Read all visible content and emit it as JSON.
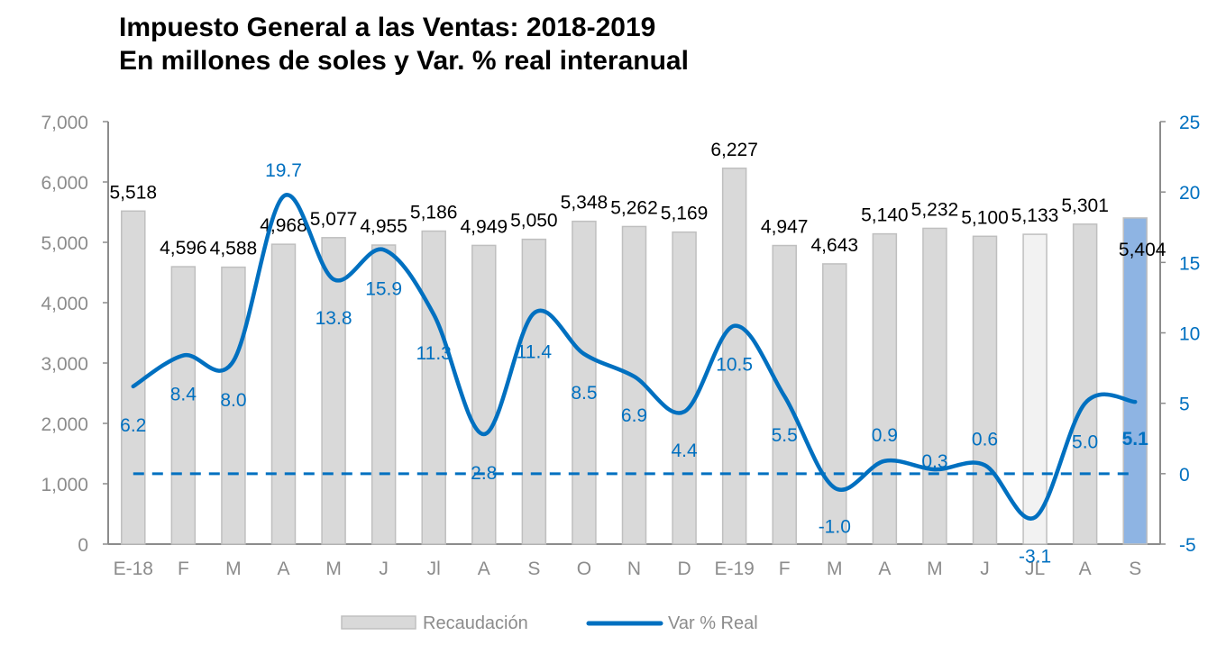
{
  "chart_data": {
    "type": "bar+line",
    "title": "Impuesto General a las Ventas: 2018-2019",
    "subtitle": "En millones de soles y Var. % real interanual",
    "categories": [
      "E-18",
      "F",
      "M",
      "A",
      "M",
      "J",
      "Jl",
      "A",
      "S",
      "O",
      "N",
      "D",
      "E-19",
      "F",
      "M",
      "A",
      "M",
      "J",
      "JL",
      "A",
      "S"
    ],
    "series": [
      {
        "name": "Recaudación",
        "type": "bar",
        "axis": "left",
        "color": "#d9d9d9",
        "values": [
          5518,
          4596,
          4588,
          4968,
          5077,
          4955,
          5186,
          4949,
          5050,
          5348,
          5262,
          5169,
          6227,
          4947,
          4643,
          5140,
          5232,
          5100,
          5133,
          5301,
          5404
        ],
        "labels": [
          "5,518",
          "4,596",
          "4,588",
          "4,968",
          "5,077",
          "4,955",
          "5,186",
          "4,949",
          "5,050",
          "5,348",
          "5,262",
          "5,169",
          "6,227",
          "4,947",
          "4,643",
          "5,140",
          "5,232",
          "5,100",
          "5,133",
          "5,301",
          "5,404"
        ]
      },
      {
        "name": "Var % Real",
        "type": "line",
        "axis": "right",
        "color": "#0070c0",
        "smooth": true,
        "values": [
          6.2,
          8.4,
          8.0,
          19.7,
          13.8,
          15.9,
          11.3,
          2.8,
          11.4,
          8.5,
          6.9,
          4.4,
          10.5,
          5.5,
          -1.0,
          0.9,
          0.3,
          0.6,
          -3.1,
          5.0,
          5.1
        ],
        "labels": [
          "6.2",
          "8.4",
          "8.0",
          "19.7",
          "13.8",
          "15.9",
          "11.3",
          "2.8",
          "11.4",
          "8.5",
          "6.9",
          "4.4",
          "10.5",
          "5.5",
          "-1.0",
          "0.9",
          "0.3",
          "0.6",
          "-3.1",
          "5.0",
          "5.1"
        ]
      }
    ],
    "bar_highlights": {
      "JL": "#f2f2f2",
      "S": "#8eb4e3"
    },
    "left_axis": {
      "ylim": [
        0,
        7000
      ],
      "ticks": [
        "0",
        "1,000",
        "2,000",
        "3,000",
        "4,000",
        "5,000",
        "6,000",
        "7,000"
      ]
    },
    "right_axis": {
      "ylim": [
        -5,
        25
      ],
      "ticks": [
        "-5",
        "0",
        "5",
        "10",
        "15",
        "20",
        "25"
      ],
      "color": "#0070c0"
    },
    "zero_reference_line": {
      "value": 0,
      "style": "dashed",
      "color": "#0070c0"
    },
    "grid": false,
    "legend": {
      "placement": "bottom",
      "items": [
        "Recaudación",
        "Var % Real"
      ]
    }
  }
}
